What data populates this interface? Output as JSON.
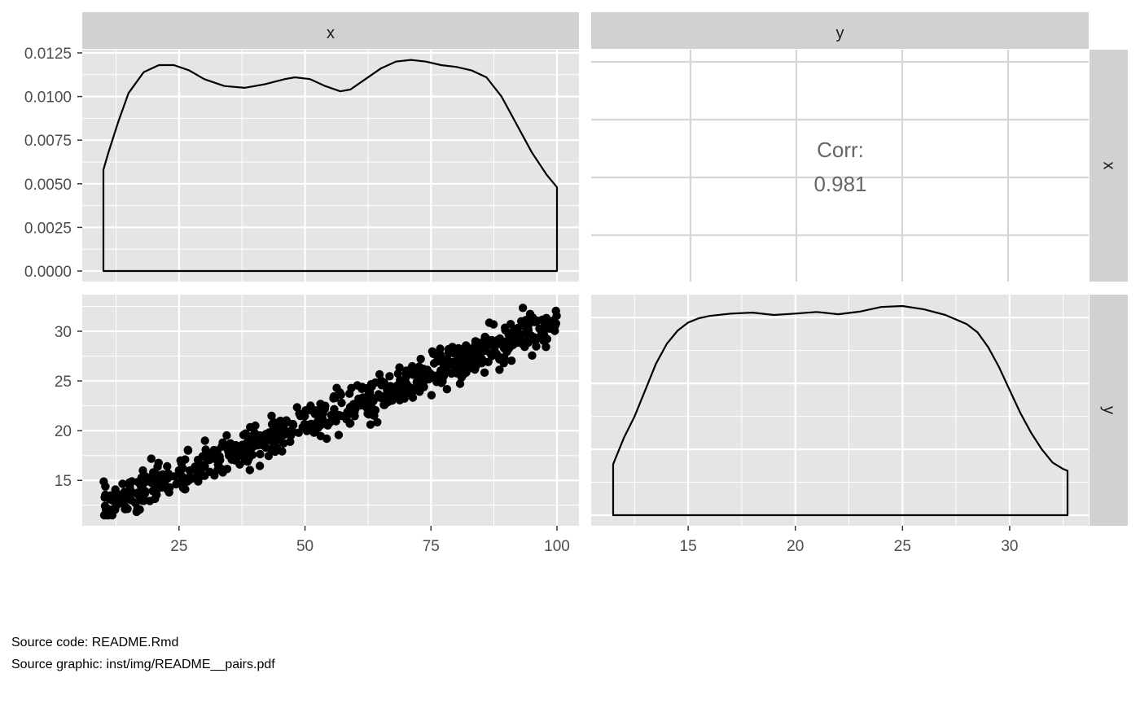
{
  "chart_data": {
    "type": "pairs",
    "variables": [
      "x",
      "y"
    ],
    "colors": {
      "panel_bg": "#e5e5e5",
      "strip_bg": "#d1d1d1",
      "grid_major": "#ffffff",
      "corr_grid": "#d6d6d6",
      "mark": "#000000"
    },
    "panels": [
      {
        "id": "density-x",
        "type": "area",
        "x_var": "x",
        "x_range": [
          10,
          100
        ],
        "y_range": [
          0,
          0.0125
        ],
        "y_ticks": [
          "0.0000",
          "0.0025",
          "0.0050",
          "0.0075",
          "0.0100",
          "0.0125"
        ],
        "y_tick_values": [
          0,
          0.0025,
          0.005,
          0.0075,
          0.01,
          0.0125
        ],
        "x": [
          10,
          11,
          13,
          15,
          18,
          21,
          24,
          27,
          30,
          34,
          38,
          42,
          46,
          48,
          51,
          54,
          57,
          59,
          62,
          65,
          68,
          71,
          74,
          77,
          80,
          83,
          86,
          89,
          92,
          95,
          98,
          100
        ],
        "y": [
          0.0058,
          0.0068,
          0.0086,
          0.0102,
          0.0114,
          0.0118,
          0.0118,
          0.0115,
          0.011,
          0.0106,
          0.0105,
          0.0107,
          0.011,
          0.0111,
          0.011,
          0.0106,
          0.0103,
          0.0104,
          0.011,
          0.0116,
          0.012,
          0.0121,
          0.012,
          0.0118,
          0.0117,
          0.0115,
          0.0111,
          0.01,
          0.0084,
          0.0068,
          0.0055,
          0.0048
        ]
      },
      {
        "id": "corr-xy",
        "type": "table",
        "label": "Corr:",
        "value": "0.981"
      },
      {
        "id": "scatter-yx",
        "type": "scatter",
        "x_var": "x",
        "y_var": "y",
        "x_range": [
          10,
          100
        ],
        "y_range": [
          11.5,
          32.7
        ],
        "x_ticks": [
          25,
          50,
          75,
          100
        ],
        "y_ticks": [
          15,
          20,
          25,
          30
        ],
        "trend": {
          "intercept": 10.2,
          "slope": 0.2082
        },
        "n_points": 700
      },
      {
        "id": "density-y",
        "type": "area",
        "x_var": "y",
        "x_range": [
          11.5,
          32.7
        ],
        "x_ticks": [
          15,
          20,
          25,
          30
        ],
        "x": [
          11.5,
          12,
          12.5,
          13,
          13.5,
          14,
          14.5,
          15,
          15.5,
          16,
          17,
          18,
          19,
          20,
          21,
          22,
          23,
          24,
          25,
          26,
          27,
          28,
          28.5,
          29,
          29.5,
          30,
          30.5,
          31,
          31.5,
          32,
          32.5,
          32.7
        ],
        "y": [
          0.0155,
          0.0235,
          0.03,
          0.038,
          0.046,
          0.052,
          0.056,
          0.0585,
          0.0598,
          0.0605,
          0.0612,
          0.0615,
          0.0608,
          0.0612,
          0.0617,
          0.061,
          0.0618,
          0.0632,
          0.0635,
          0.0625,
          0.0608,
          0.058,
          0.0555,
          0.051,
          0.045,
          0.038,
          0.031,
          0.025,
          0.02,
          0.016,
          0.014,
          0.0135
        ],
        "y_max": 0.064
      }
    ],
    "strips_top": [
      "x",
      "y"
    ],
    "strips_right": [
      "x",
      "y"
    ]
  },
  "caption": {
    "line1": "Source code: README.Rmd",
    "line2": "Source graphic: inst/img/README__pairs.pdf"
  }
}
